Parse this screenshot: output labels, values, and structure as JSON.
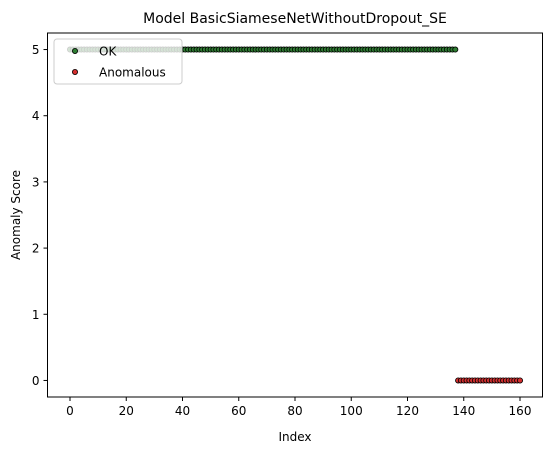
{
  "chart_data": {
    "type": "scatter",
    "title": "Model BasicSiameseNetWithoutDropout_SE",
    "xlabel": "Index",
    "ylabel": "Anomaly Score",
    "xlim": [
      -8,
      168
    ],
    "ylim": [
      -0.25,
      5.25
    ],
    "xticks": [
      0,
      20,
      40,
      60,
      80,
      100,
      120,
      140,
      160
    ],
    "yticks": [
      0,
      1,
      2,
      3,
      4,
      5
    ],
    "grid": false,
    "legend_position": "top-left",
    "series": [
      {
        "name": "OK",
        "color": "#2e7d32",
        "x_start": 0,
        "x_end": 137,
        "x_step": 1,
        "y": 5
      },
      {
        "name": "Anomalous",
        "color": "#d32f2f",
        "x_start": 138,
        "x_end": 160,
        "x_step": 1,
        "y": 0
      }
    ]
  }
}
